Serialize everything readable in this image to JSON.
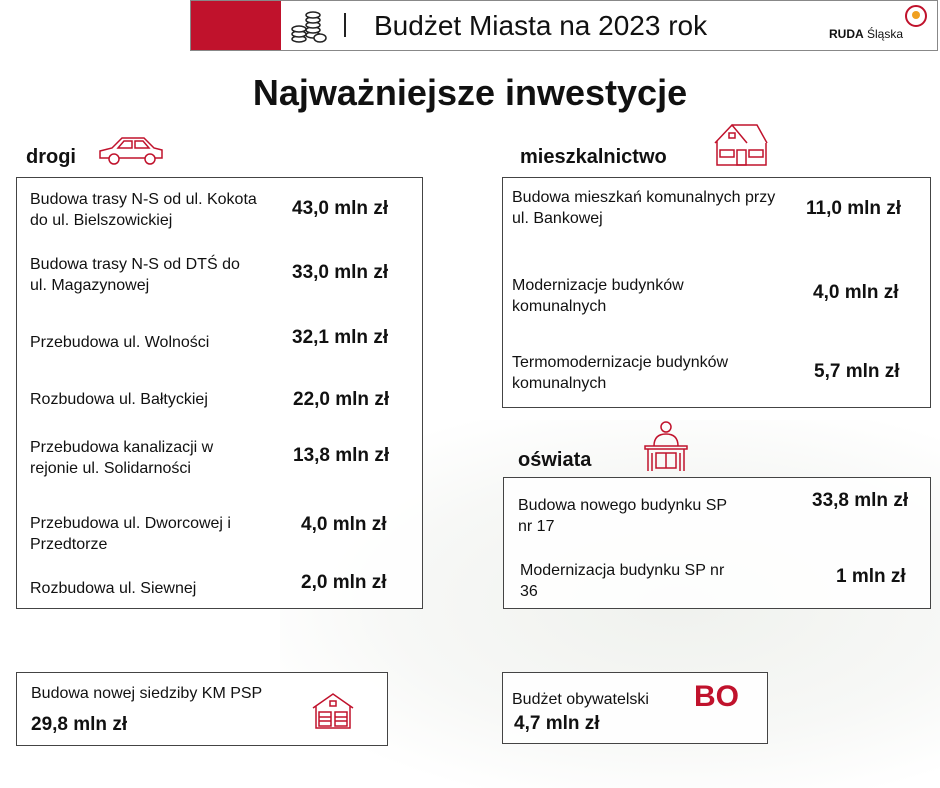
{
  "header": {
    "title": "Budżet Miasta na 2023 rok",
    "logo_text_1": "RUDA",
    "logo_text_2": "Śląska"
  },
  "main_title": "Najważniejsze inwestycje",
  "colors": {
    "accent": "#c0122c"
  },
  "drogi": {
    "title": "drogi",
    "icon": "car-icon",
    "items": [
      {
        "desc": "Budowa trasy N-S od ul. Kokota do ul. Bielszowickiej",
        "value": "43,0 mln zł"
      },
      {
        "desc": "Budowa trasy N-S od DTŚ do ul. Magazynowej",
        "value": "33,0 mln zł"
      },
      {
        "desc": "Przebudowa ul. Wolności",
        "value": "32,1 mln zł"
      },
      {
        "desc": "Rozbudowa ul. Bałtyckiej",
        "value": "22,0 mln zł"
      },
      {
        "desc": "Przebudowa kanalizacji w rejonie ul. Solidarności",
        "value": "13,8 mln zł"
      },
      {
        "desc": "Przebudowa ul. Dworcowej i Przedtorze",
        "value": "4,0 mln zł"
      },
      {
        "desc": "Rozbudowa ul. Siewnej",
        "value": "2,0 mln zł"
      }
    ]
  },
  "mieszkalnictwo": {
    "title": "mieszkalnictwo",
    "icon": "house-icon",
    "items": [
      {
        "desc": "Budowa mieszkań komunalnych przy ul. Bankowej",
        "value": "11,0 mln zł"
      },
      {
        "desc": "Modernizacje budynków komunalnych",
        "value": "4,0 mln zł"
      },
      {
        "desc": "Termomodernizacje budynków komunalnych",
        "value": "5,7 mln zł"
      }
    ]
  },
  "oswiata": {
    "title": "oświata",
    "icon": "student-desk-icon",
    "items": [
      {
        "desc": "Budowa nowego budynku SP nr 17",
        "value": "33,8 mln zł"
      },
      {
        "desc": "Modernizacja budynku SP nr 36",
        "value": "1 mln zł"
      }
    ]
  },
  "kmpsp": {
    "desc": "Budowa nowej siedziby KM PSP",
    "value": "29,8 mln zł",
    "icon": "fire-station-icon"
  },
  "bo": {
    "desc": "Budżet obywatelski",
    "value": "4,7 mln zł",
    "badge": "BO"
  }
}
